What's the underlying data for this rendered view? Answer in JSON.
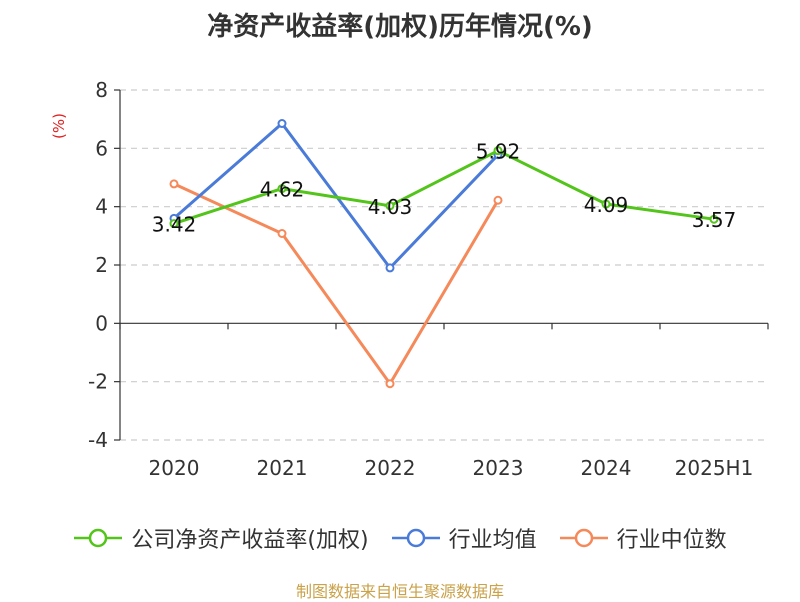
{
  "chart_data": {
    "type": "line",
    "title": "净资产收益率(加权)历年情况(%)",
    "ylabel": "(%)",
    "categories": [
      "2020",
      "2021",
      "2022",
      "2023",
      "2024",
      "2025H1"
    ],
    "ylim": [
      -4,
      8
    ],
    "yticks": [
      -4,
      -2,
      0,
      2,
      4,
      6,
      8
    ],
    "grid": true,
    "legend_position": "bottom",
    "series": [
      {
        "name": "公司净资产收益率(加权)",
        "color": "#52c41a",
        "values": [
          3.42,
          4.62,
          4.03,
          5.92,
          4.09,
          3.57
        ],
        "labels": [
          "3.42",
          "4.62",
          "4.03",
          "5.92",
          "4.09",
          "3.57"
        ]
      },
      {
        "name": "行业均值",
        "color": "#4a7bd8",
        "values": [
          3.6,
          6.85,
          1.9,
          5.78,
          null,
          null
        ]
      },
      {
        "name": "行业中位数",
        "color": "#f5895a",
        "values": [
          4.78,
          3.08,
          -2.07,
          4.22,
          null,
          null
        ]
      }
    ]
  },
  "footer": "制图数据来自恒生聚源数据库",
  "colors": {
    "axis": "#333333",
    "grid": "#cccccc",
    "ylabel": "#e02020",
    "footer": "#c9a24a"
  }
}
